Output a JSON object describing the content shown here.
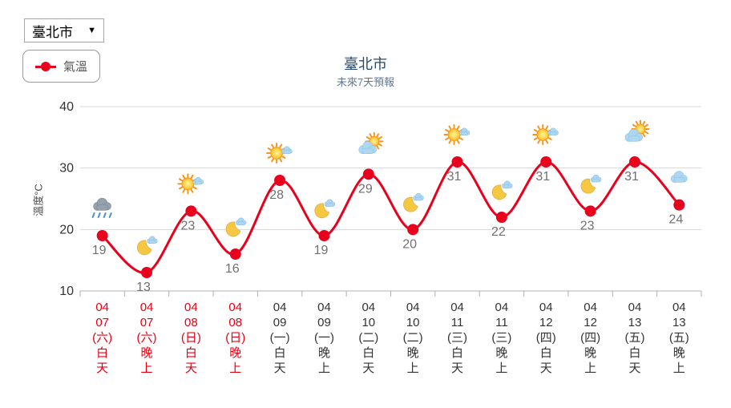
{
  "controls": {
    "city_select": {
      "value": "臺北市",
      "arrow": "▼"
    }
  },
  "legend": {
    "temperature_label": "氣溫"
  },
  "chart_data": {
    "type": "line",
    "title": "臺北市",
    "subtitle": "未來7天預報",
    "ylabel": "溫度°C",
    "ylim": [
      10,
      40
    ],
    "yticks": [
      10,
      20,
      30,
      40
    ],
    "grid": true,
    "legend_position": "top-left",
    "series": [
      {
        "name": "氣溫",
        "values": [
          19,
          13,
          23,
          16,
          28,
          19,
          29,
          20,
          31,
          22,
          31,
          23,
          31,
          24
        ]
      }
    ],
    "categories": [
      {
        "month": "04",
        "day": "07",
        "weekday": "(六)",
        "period": "白天",
        "weekend": true,
        "icon": "rain-cloud"
      },
      {
        "month": "04",
        "day": "07",
        "weekday": "(六)",
        "period": "晚上",
        "weekend": true,
        "icon": "moon-cloud"
      },
      {
        "month": "04",
        "day": "08",
        "weekday": "(日)",
        "period": "白天",
        "weekend": true,
        "icon": "sun-cloud"
      },
      {
        "month": "04",
        "day": "08",
        "weekday": "(日)",
        "period": "晚上",
        "weekend": true,
        "icon": "moon-cloud"
      },
      {
        "month": "04",
        "day": "09",
        "weekday": "(一)",
        "period": "白天",
        "weekend": false,
        "icon": "sun-cloud"
      },
      {
        "month": "04",
        "day": "09",
        "weekday": "(一)",
        "period": "晚上",
        "weekend": false,
        "icon": "moon-cloud"
      },
      {
        "month": "04",
        "day": "10",
        "weekday": "(二)",
        "period": "白天",
        "weekend": false,
        "icon": "cloud-sun"
      },
      {
        "month": "04",
        "day": "10",
        "weekday": "(二)",
        "period": "晚上",
        "weekend": false,
        "icon": "moon-cloud"
      },
      {
        "month": "04",
        "day": "11",
        "weekday": "(三)",
        "period": "白天",
        "weekend": false,
        "icon": "sun-cloud"
      },
      {
        "month": "04",
        "day": "11",
        "weekday": "(三)",
        "period": "晚上",
        "weekend": false,
        "icon": "moon-cloud"
      },
      {
        "month": "04",
        "day": "12",
        "weekday": "(四)",
        "period": "白天",
        "weekend": false,
        "icon": "sun-cloud"
      },
      {
        "month": "04",
        "day": "12",
        "weekday": "(四)",
        "period": "晚上",
        "weekend": false,
        "icon": "moon-cloud"
      },
      {
        "month": "04",
        "day": "13",
        "weekday": "(五)",
        "period": "白天",
        "weekend": false,
        "icon": "cloud-sun"
      },
      {
        "month": "04",
        "day": "13",
        "weekday": "(五)",
        "period": "晚上",
        "weekend": false,
        "icon": "cloud"
      }
    ],
    "colors": {
      "line": "#e8001c",
      "marker": "#e8001c",
      "weekend_label": "#e60012",
      "weekday_label": "#333333",
      "grid": "#d8d8d8",
      "axis": "#b0b0b0",
      "data_label": "#707070",
      "tick_label": "#333333",
      "title": "#274b6d",
      "subtitle": "#66788e"
    }
  }
}
